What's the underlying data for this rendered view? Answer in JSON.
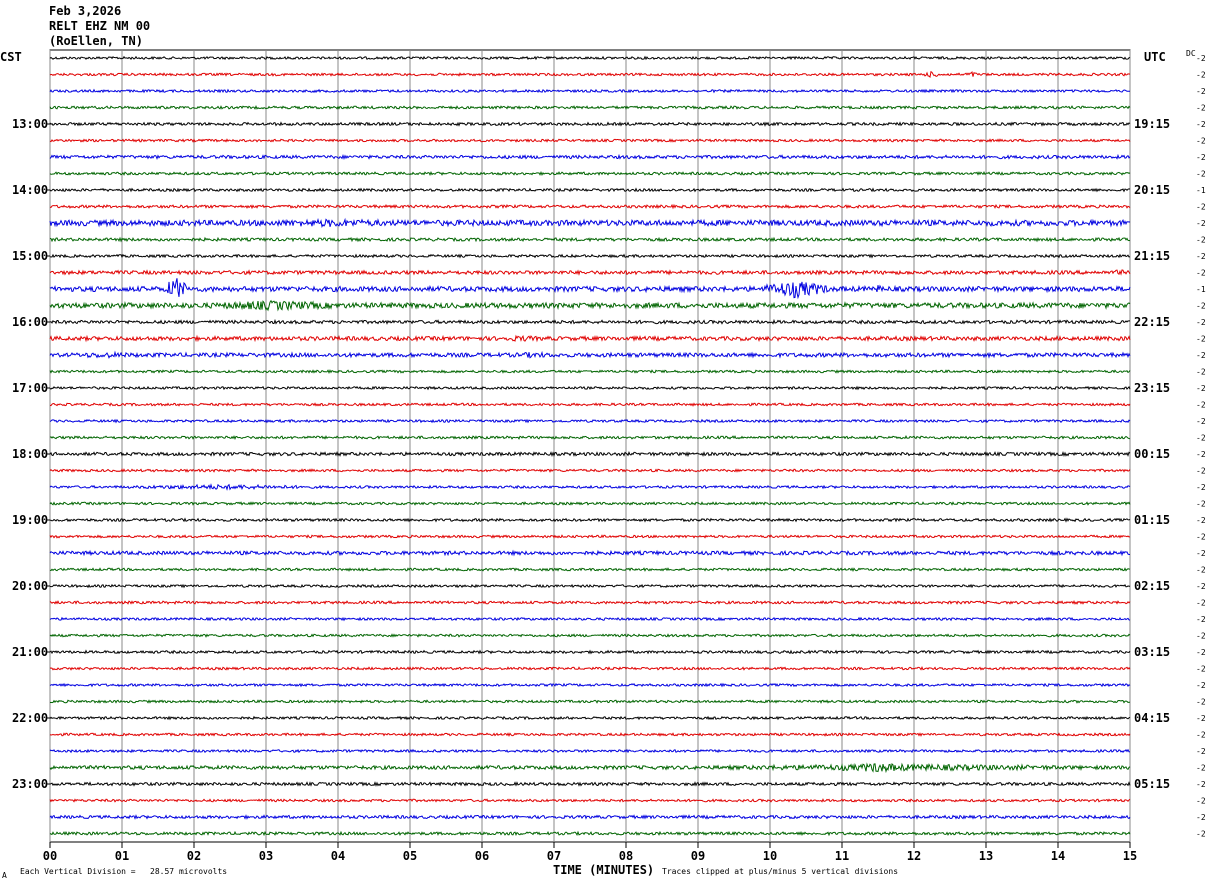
{
  "header": {
    "date": "Feb 3,2026",
    "station": "RELT EHZ NM 00",
    "location": "(RoEllen, TN)"
  },
  "tz": {
    "left": "CST",
    "right": "UTC",
    "dc": "DC"
  },
  "footer": {
    "scale": "Each Vertical Division =   28.57 microvolts",
    "xlabel": "TIME (MINUTES)",
    "clip": "Traces clipped at plus/minus 5 vertical divisions",
    "corner": "A"
  },
  "chart_data": {
    "type": "line",
    "title": "",
    "xlabel": "TIME (MINUTES)",
    "ylabel": "",
    "xlim": [
      0,
      15
    ],
    "x_ticks": [
      "00",
      "01",
      "02",
      "03",
      "04",
      "05",
      "06",
      "07",
      "08",
      "09",
      "10",
      "11",
      "12",
      "13",
      "14",
      "15"
    ],
    "trace_count": 48,
    "trace_colors": [
      "#000000",
      "#e00000",
      "#0000e0",
      "#006400"
    ],
    "left_hour_labels": [
      "13:00",
      "14:00",
      "15:00",
      "16:00",
      "17:00",
      "18:00",
      "19:00",
      "20:00",
      "21:00",
      "22:00",
      "23:00"
    ],
    "right_hour_labels": [
      "19:15",
      "20:15",
      "21:15",
      "22:15",
      "23:15",
      "00:15",
      "01:15",
      "02:15",
      "03:15",
      "04:15",
      "05:15"
    ],
    "dc_offsets": [
      "-2",
      "-2",
      "-2",
      "-2",
      "-2",
      "-2",
      "-2",
      "-2",
      "-1",
      "-2",
      "-2",
      "-2",
      "-2",
      "-2",
      "-1",
      "-2",
      "-2",
      "-2",
      "-2",
      "-2",
      "-2",
      "-2",
      "-2",
      "-2",
      "-2",
      "-2",
      "-2",
      "-2",
      "-2",
      "-2",
      "-2",
      "-2",
      "-2",
      "-2",
      "-2",
      "-2",
      "-2",
      "-2",
      "-2",
      "-2",
      "-2",
      "-2",
      "-2",
      "-2",
      "-2",
      "-2",
      "-2",
      "-2"
    ],
    "amplitude": [
      1.2,
      1.2,
      1.2,
      1.3,
      1.4,
      1.2,
      1.6,
      1.3,
      1.3,
      1.4,
      2.8,
      1.5,
      1.3,
      1.8,
      2.5,
      2.6,
      1.6,
      2.0,
      2.0,
      1.2,
      1.2,
      1.2,
      1.2,
      1.3,
      1.6,
      1.2,
      1.2,
      1.2,
      1.3,
      1.2,
      1.8,
      1.2,
      1.2,
      1.3,
      1.2,
      1.2,
      1.3,
      1.2,
      1.2,
      1.2,
      1.2,
      1.2,
      1.2,
      1.8,
      1.5,
      1.2,
      1.5,
      1.4
    ],
    "events": [
      {
        "trace": 1,
        "start": 12.1,
        "end": 12.4,
        "amp": 3
      },
      {
        "trace": 1,
        "start": 12.7,
        "end": 12.9,
        "amp": 3
      },
      {
        "trace": 10,
        "start": 2.3,
        "end": 5.5,
        "amp": 4
      },
      {
        "trace": 13,
        "start": 13.9,
        "end": 14.1,
        "amp": 2.5
      },
      {
        "trace": 13,
        "start": 14.7,
        "end": 15.0,
        "amp": 3
      },
      {
        "trace": 14,
        "start": 1.6,
        "end": 1.9,
        "amp": 12
      },
      {
        "trace": 14,
        "start": 9.9,
        "end": 10.8,
        "amp": 9
      },
      {
        "trace": 14,
        "start": 11.4,
        "end": 11.6,
        "amp": 4
      },
      {
        "trace": 15,
        "start": 2.0,
        "end": 4.2,
        "amp": 5
      },
      {
        "trace": 17,
        "start": 6.1,
        "end": 7.0,
        "amp": 3
      },
      {
        "trace": 18,
        "start": 0.0,
        "end": 1.5,
        "amp": 3
      },
      {
        "trace": 18,
        "start": 6.2,
        "end": 7.2,
        "amp": 3
      },
      {
        "trace": 26,
        "start": 0.8,
        "end": 4.0,
        "amp": 2.5
      },
      {
        "trace": 43,
        "start": 8.6,
        "end": 15.0,
        "amp": 3.5
      },
      {
        "trace": 43,
        "start": 11.0,
        "end": 12.0,
        "amp": 5
      }
    ]
  }
}
